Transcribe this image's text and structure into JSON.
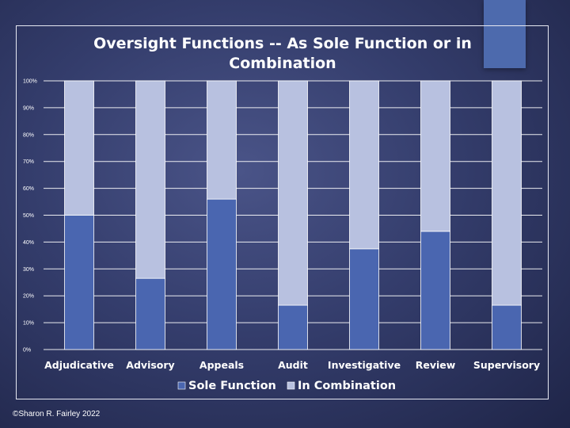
{
  "footer": "©Sharon R. Fairley 2022",
  "colors": {
    "sole": "#4a66b0",
    "combination": "#b8c1e0",
    "grid": "#ffffff",
    "text": "#ffffff"
  },
  "chart_data": {
    "type": "bar",
    "stacked": true,
    "percent": true,
    "title": "Oversight Functions -- As Sole Function or in Combination",
    "title_lines": [
      "Oversight Functions -- As Sole Function or in",
      "Combination"
    ],
    "categories": [
      "Adjudicative",
      "Advisory",
      "Appeals",
      "Audit",
      "Investigative",
      "Review",
      "Supervisory"
    ],
    "series": [
      {
        "name": "Sole Function",
        "values": [
          50,
          26.5,
          56,
          16.5,
          37.5,
          44,
          16.5
        ]
      },
      {
        "name": "In Combination",
        "values": [
          50,
          73.5,
          44,
          83.5,
          62.5,
          56,
          83.5
        ]
      }
    ],
    "yticks": [
      "0%",
      "10%",
      "20%",
      "30%",
      "40%",
      "50%",
      "60%",
      "70%",
      "80%",
      "90%",
      "100%"
    ],
    "ylim": [
      0,
      100
    ],
    "grid": true,
    "legend": "bottom"
  }
}
